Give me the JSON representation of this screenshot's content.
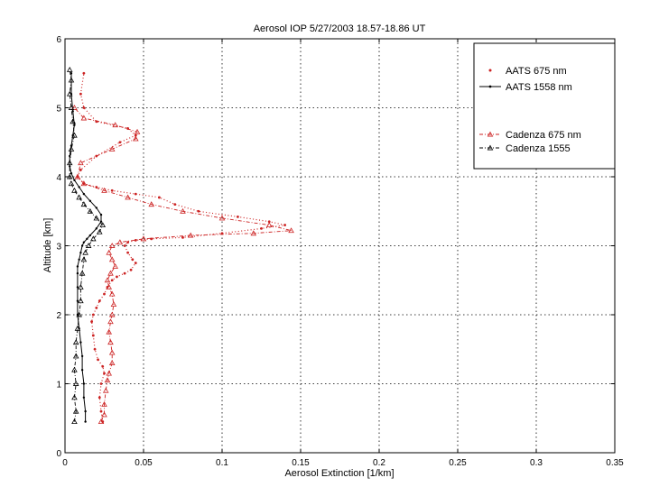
{
  "chart_data": {
    "type": "line",
    "title": "Aerosol IOP  5/27/2003 18.57-18.86  UT",
    "xlabel": "Aerosol Extinction [1/km]",
    "ylabel": "Altitude [km]",
    "xlim": [
      0,
      0.35
    ],
    "ylim": [
      0,
      6
    ],
    "xticks": [
      "0",
      "0.05",
      "0.1",
      "0.15",
      "0.2",
      "0.25",
      "0.3",
      "0.35"
    ],
    "yticks": [
      "0",
      "1",
      "2",
      "3",
      "4",
      "5",
      "6"
    ],
    "grid": true,
    "legend_position": "top-right",
    "series": [
      {
        "name": "AATS 675 nm",
        "color": "#cc2222",
        "style": "dots",
        "x": [
          0.024,
          0.023,
          0.022,
          0.023,
          0.025,
          0.024,
          0.021,
          0.019,
          0.018,
          0.017,
          0.018,
          0.02,
          0.022,
          0.025,
          0.027,
          0.03,
          0.033,
          0.038,
          0.042,
          0.045,
          0.043,
          0.04,
          0.038,
          0.04,
          0.045,
          0.055,
          0.075,
          0.1,
          0.125,
          0.14,
          0.13,
          0.11,
          0.085,
          0.07,
          0.06,
          0.045,
          0.03,
          0.02,
          0.012,
          0.008,
          0.01,
          0.02,
          0.035,
          0.045,
          0.04,
          0.02,
          0.012,
          0.01,
          0.012
        ],
        "y": [
          0.45,
          0.6,
          0.8,
          1.0,
          1.15,
          1.25,
          1.35,
          1.5,
          1.7,
          1.9,
          2.0,
          2.1,
          2.2,
          2.3,
          2.4,
          2.5,
          2.55,
          2.6,
          2.65,
          2.75,
          2.8,
          2.9,
          3.0,
          3.05,
          3.08,
          3.1,
          3.12,
          3.18,
          3.25,
          3.3,
          3.35,
          3.42,
          3.5,
          3.6,
          3.7,
          3.75,
          3.8,
          3.85,
          3.9,
          4.0,
          4.1,
          4.3,
          4.5,
          4.6,
          4.7,
          4.8,
          5.0,
          5.2,
          5.5
        ]
      },
      {
        "name": "AATS 1558 nm",
        "color": "#000000",
        "style": "solid-dots",
        "x": [
          0.013,
          0.013,
          0.012,
          0.012,
          0.011,
          0.011,
          0.01,
          0.009,
          0.008,
          0.008,
          0.008,
          0.008,
          0.008,
          0.009,
          0.01,
          0.011,
          0.012,
          0.014,
          0.016,
          0.02,
          0.023,
          0.023,
          0.02,
          0.016,
          0.012,
          0.009,
          0.006,
          0.004,
          0.003,
          0.003,
          0.004,
          0.005,
          0.006,
          0.005,
          0.004,
          0.004
        ],
        "y": [
          0.45,
          0.6,
          0.8,
          1.0,
          1.2,
          1.4,
          1.6,
          1.8,
          2.0,
          2.2,
          2.4,
          2.6,
          2.7,
          2.8,
          2.9,
          3.0,
          3.05,
          3.1,
          3.15,
          3.25,
          3.35,
          3.45,
          3.55,
          3.65,
          3.75,
          3.85,
          3.95,
          4.05,
          4.15,
          4.3,
          4.45,
          4.6,
          4.75,
          4.95,
          5.2,
          5.5
        ]
      },
      {
        "name": "Cadenza 675 nm",
        "color": "#cc2222",
        "style": "dashed-triangles",
        "x": [
          0.023,
          0.025,
          0.025,
          0.026,
          0.027,
          0.028,
          0.03,
          0.03,
          0.029,
          0.028,
          0.029,
          0.03,
          0.031,
          0.03,
          0.028,
          0.027,
          0.029,
          0.032,
          0.03,
          0.028,
          0.03,
          0.035,
          0.05,
          0.08,
          0.12,
          0.144,
          0.13,
          0.1,
          0.075,
          0.055,
          0.04,
          0.025,
          0.012,
          0.008,
          0.01,
          0.03,
          0.045,
          0.046,
          0.032,
          0.012,
          0.006
        ],
        "y": [
          0.45,
          0.55,
          0.7,
          0.9,
          1.05,
          1.15,
          1.3,
          1.45,
          1.6,
          1.75,
          1.9,
          2.0,
          2.15,
          2.3,
          2.4,
          2.5,
          2.6,
          2.7,
          2.8,
          2.9,
          3.0,
          3.05,
          3.1,
          3.15,
          3.18,
          3.22,
          3.3,
          3.4,
          3.5,
          3.6,
          3.7,
          3.8,
          3.9,
          4.0,
          4.2,
          4.4,
          4.55,
          4.65,
          4.75,
          4.85,
          5.0
        ]
      },
      {
        "name": "Cadenza 1555",
        "color": "#000000",
        "style": "dashed-triangles",
        "x": [
          0.006,
          0.007,
          0.006,
          0.007,
          0.006,
          0.007,
          0.007,
          0.008,
          0.009,
          0.01,
          0.01,
          0.011,
          0.012,
          0.013,
          0.015,
          0.018,
          0.022,
          0.024,
          0.02,
          0.016,
          0.012,
          0.009,
          0.006,
          0.004,
          0.003,
          0.003,
          0.004,
          0.006,
          0.005,
          0.004,
          0.003,
          0.004,
          0.003
        ],
        "y": [
          0.45,
          0.6,
          0.8,
          1.0,
          1.2,
          1.4,
          1.6,
          1.8,
          2.0,
          2.2,
          2.4,
          2.6,
          2.8,
          2.9,
          3.0,
          3.1,
          3.2,
          3.3,
          3.4,
          3.5,
          3.6,
          3.7,
          3.8,
          3.9,
          4.0,
          4.2,
          4.4,
          4.6,
          4.8,
          5.0,
          5.2,
          5.4,
          5.55
        ]
      }
    ]
  }
}
